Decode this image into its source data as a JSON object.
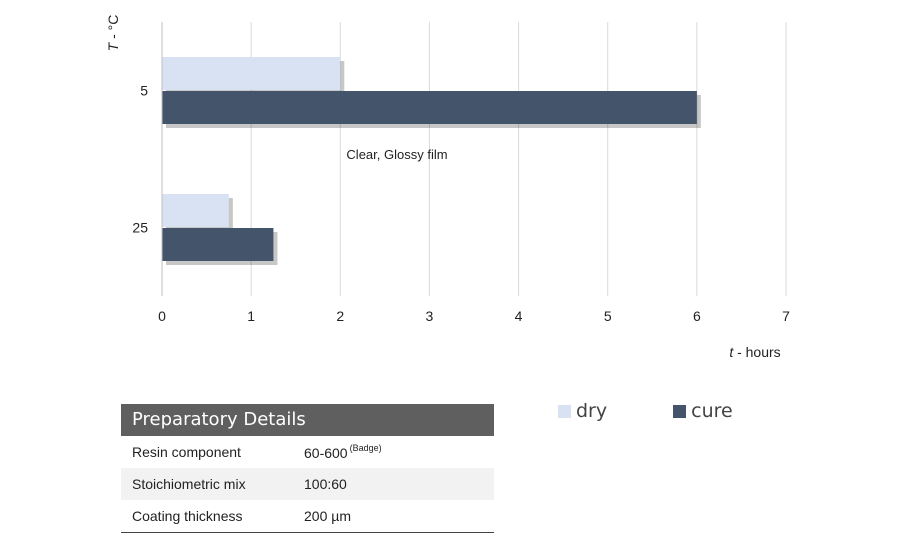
{
  "chart_data": {
    "type": "bar",
    "orientation": "horizontal",
    "categories": [
      "5",
      "25"
    ],
    "series": [
      {
        "name": "dry",
        "values": [
          2,
          0.75
        ],
        "color": "#d9e2f3"
      },
      {
        "name": "cure",
        "values": [
          6,
          1.25
        ],
        "color": "#44546a"
      }
    ],
    "xlim": [
      0,
      7
    ],
    "x_ticks": [
      "0",
      "1",
      "2",
      "3",
      "4",
      "5",
      "6",
      "7"
    ],
    "xlabel_italic": "t",
    "xlabel_rest": " - hours",
    "ylabel_italic": "T",
    "ylabel_rest": " - °C",
    "annotation": "Clear, Glossy film",
    "grid": "vertical",
    "legend_position": "bottom-right"
  },
  "details": {
    "title": "Preparatory Details",
    "rows": [
      {
        "label": "Resin component",
        "value": "60-600",
        "note": "(Badge)"
      },
      {
        "label": "Stoichiometric mix",
        "value": "100:60"
      },
      {
        "label": "Coating thickness",
        "value": "200 µm"
      }
    ]
  }
}
